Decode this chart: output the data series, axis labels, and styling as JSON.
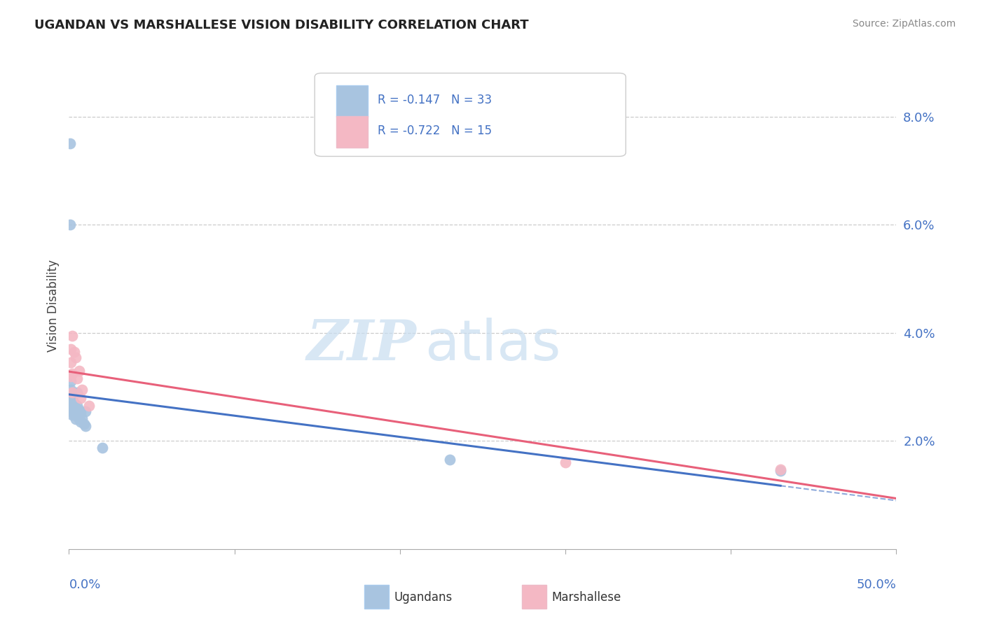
{
  "title": "UGANDAN VS MARSHALLESE VISION DISABILITY CORRELATION CHART",
  "source": "Source: ZipAtlas.com",
  "ylabel": "Vision Disability",
  "watermark_zip": "ZIP",
  "watermark_atlas": "atlas",
  "ugandan_R": -0.147,
  "ugandan_N": 33,
  "marshallese_R": -0.722,
  "marshallese_N": 15,
  "ugandan_color": "#a8c4e0",
  "marshallese_color": "#f4b8c4",
  "ugandan_line_color": "#4472c4",
  "marshallese_line_color": "#e8607a",
  "ugandan_points": [
    [
      0.0008,
      0.075
    ],
    [
      0.0008,
      0.06
    ],
    [
      0.001,
      0.031
    ],
    [
      0.001,
      0.0295
    ],
    [
      0.001,
      0.028
    ],
    [
      0.001,
      0.027
    ],
    [
      0.001,
      0.0265
    ],
    [
      0.001,
      0.0255
    ],
    [
      0.002,
      0.0285
    ],
    [
      0.002,
      0.0275
    ],
    [
      0.002,
      0.0265
    ],
    [
      0.002,
      0.0255
    ],
    [
      0.002,
      0.0248
    ],
    [
      0.003,
      0.027
    ],
    [
      0.003,
      0.0258
    ],
    [
      0.003,
      0.0248
    ],
    [
      0.004,
      0.026
    ],
    [
      0.004,
      0.025
    ],
    [
      0.004,
      0.024
    ],
    [
      0.005,
      0.029
    ],
    [
      0.005,
      0.0265
    ],
    [
      0.005,
      0.0252
    ],
    [
      0.006,
      0.0258
    ],
    [
      0.006,
      0.024
    ],
    [
      0.007,
      0.0252
    ],
    [
      0.007,
      0.0235
    ],
    [
      0.008,
      0.0242
    ],
    [
      0.009,
      0.0232
    ],
    [
      0.01,
      0.0255
    ],
    [
      0.01,
      0.0228
    ],
    [
      0.02,
      0.0188
    ],
    [
      0.23,
      0.0165
    ],
    [
      0.43,
      0.0145
    ]
  ],
  "marshallese_points": [
    [
      0.001,
      0.037
    ],
    [
      0.001,
      0.0345
    ],
    [
      0.001,
      0.032
    ],
    [
      0.002,
      0.0395
    ],
    [
      0.002,
      0.0325
    ],
    [
      0.002,
      0.029
    ],
    [
      0.003,
      0.0365
    ],
    [
      0.004,
      0.0355
    ],
    [
      0.005,
      0.0315
    ],
    [
      0.006,
      0.033
    ],
    [
      0.007,
      0.028
    ],
    [
      0.008,
      0.0295
    ],
    [
      0.012,
      0.0265
    ],
    [
      0.3,
      0.016
    ],
    [
      0.43,
      0.0148
    ]
  ],
  "xlim": [
    0.0,
    0.5
  ],
  "ylim": [
    0.0,
    0.09
  ],
  "yticks": [
    0.02,
    0.04,
    0.06,
    0.08
  ],
  "ytick_labels": [
    "2.0%",
    "4.0%",
    "6.0%",
    "8.0%"
  ],
  "background_color": "#ffffff",
  "legend_ugandan": "Ugandans",
  "legend_marshallese": "Marshallese"
}
